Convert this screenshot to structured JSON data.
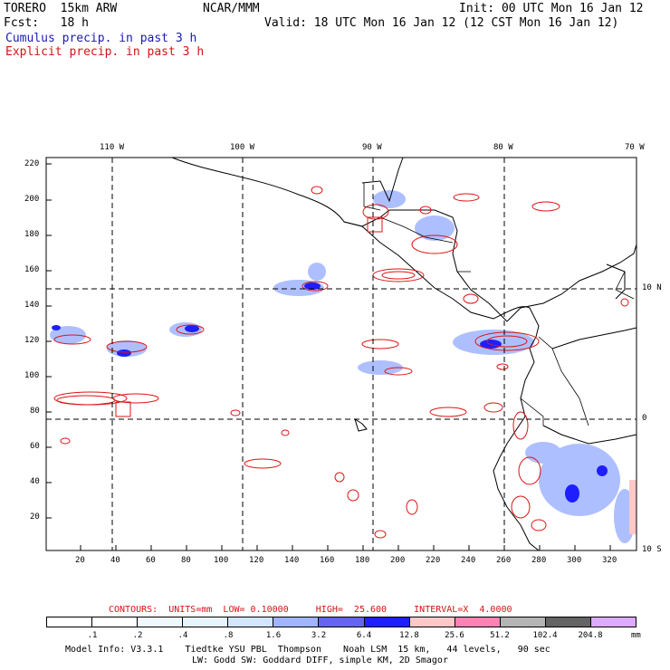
{
  "header": {
    "model": "TORERO  15km ARW",
    "org": "NCAR/MMM",
    "init": "Init: 00 UTC Mon 16 Jan 12",
    "fcst": "Fcst:   18 h",
    "valid": "Valid: 18 UTC Mon 16 Jan 12 (12 CST Mon 16 Jan 12)",
    "line_cumulus": "Cumulus precip. in past 3 h",
    "line_explicit": "Explicit precip. in past 3 h",
    "colors": {
      "cumulus": "#1a1ab4",
      "explicit": "#d21414"
    }
  },
  "map": {
    "top_lon_labels": [
      "110 W",
      "100 W",
      "90 W",
      "80 W",
      "70 W"
    ],
    "left_y_labels": [
      "220",
      "200",
      "180",
      "160",
      "140",
      "120",
      "100",
      "80",
      "60",
      "40",
      "20"
    ],
    "bottom_x_labels": [
      "20",
      "40",
      "60",
      "80",
      "100",
      "120",
      "140",
      "160",
      "180",
      "200",
      "220",
      "240",
      "260",
      "280",
      "300",
      "320"
    ],
    "right_lat_labels": [
      "10 N",
      "0",
      "10 S"
    ]
  },
  "contours_line": "CONTOURS:  UNITS=mm  LOW= 0.10000     HIGH=  25.600     INTERVAL=X  4.0000",
  "colorbar": {
    "labels": [
      ".1",
      ".2",
      ".4",
      ".8",
      "1.6",
      "3.2",
      "6.4",
      "12.8",
      "25.6",
      "51.2",
      "102.4",
      "204.8"
    ],
    "unit": "mm",
    "colors": [
      "#ffffff",
      "#ffffff",
      "#f0f8ff",
      "#e6f4ff",
      "#d2e6ff",
      "#a0b4ff",
      "#6464f0",
      "#1e1eff",
      "#ffc8c8",
      "#ff82b4",
      "#b4b4b4",
      "#646464",
      "#dcaaff"
    ]
  },
  "footer": {
    "line1": "Model Info: V3.3.1    Tiedtke YSU PBL  Thompson    Noah LSM  15 km,   44 levels,   90 sec",
    "line2": "LW: Godd SW: Goddard DIFF, simple KM, 2D Smagor"
  }
}
